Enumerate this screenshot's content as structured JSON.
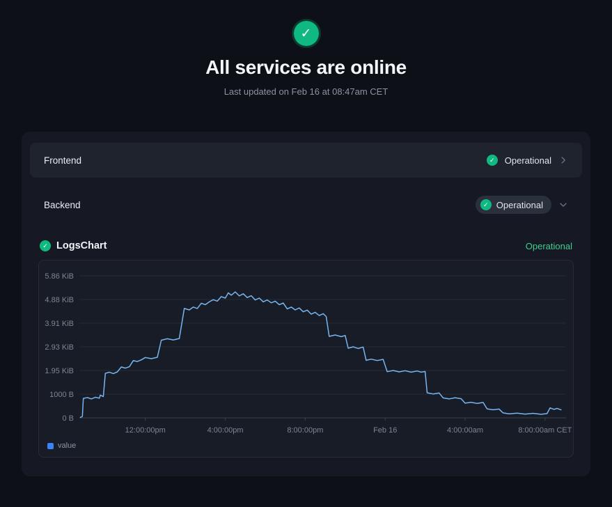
{
  "page": {
    "title": "All services are online",
    "subtitle": "Last updated on Feb 16 at 08:47am CET"
  },
  "services": [
    {
      "name": "Frontend",
      "status": "Operational"
    },
    {
      "name": "Backend",
      "status": "Operational"
    }
  ],
  "monitor": {
    "name": "LogsChart",
    "status": "Operational"
  },
  "legend": {
    "label": "value"
  },
  "colors": {
    "green": "#10b981",
    "green_text": "#3fcf8e",
    "line": "#77b6f2",
    "legend_square": "#3b82f6",
    "grid": "#252b36",
    "axis": "#3a4150",
    "tick_text": "#7d8594"
  },
  "chart_data": {
    "type": "line",
    "title": "LogsChart",
    "unit": "bytes",
    "x_unit": "hours since Feb 15 00:00 (CET)",
    "x_range": [
      8.7,
      33.05
    ],
    "y_range": [
      0,
      6000
    ],
    "grid": true,
    "legend_position": "bottom-left",
    "y_ticks": [
      {
        "value": 0,
        "label": "0 B"
      },
      {
        "value": 1000,
        "label": "1000 B"
      },
      {
        "value": 2000,
        "label": "1.95 KiB"
      },
      {
        "value": 3000,
        "label": "2.93 KiB"
      },
      {
        "value": 4000,
        "label": "3.91 KiB"
      },
      {
        "value": 5000,
        "label": "4.88 KiB"
      },
      {
        "value": 6000,
        "label": "5.86 KiB"
      }
    ],
    "x_ticks": [
      {
        "value": 12,
        "label": "12:00:00pm"
      },
      {
        "value": 16,
        "label": "4:00:00pm"
      },
      {
        "value": 20,
        "label": "8:00:00pm"
      },
      {
        "value": 24,
        "label": "Feb 16"
      },
      {
        "value": 28,
        "label": "4:00:00am"
      },
      {
        "value": 32,
        "label": "8:00:00am CET"
      }
    ],
    "series": [
      {
        "name": "value",
        "points": [
          [
            8.75,
            20
          ],
          [
            8.85,
            60
          ],
          [
            8.9,
            820
          ],
          [
            9.1,
            860
          ],
          [
            9.3,
            800
          ],
          [
            9.5,
            870
          ],
          [
            9.7,
            830
          ],
          [
            9.75,
            960
          ],
          [
            9.9,
            900
          ],
          [
            10.0,
            1880
          ],
          [
            10.2,
            1930
          ],
          [
            10.4,
            1870
          ],
          [
            10.6,
            1940
          ],
          [
            10.8,
            2150
          ],
          [
            11.0,
            2100
          ],
          [
            11.2,
            2160
          ],
          [
            11.4,
            2420
          ],
          [
            11.6,
            2380
          ],
          [
            11.8,
            2450
          ],
          [
            12.0,
            2550
          ],
          [
            12.3,
            2500
          ],
          [
            12.6,
            2560
          ],
          [
            12.8,
            3280
          ],
          [
            13.1,
            3340
          ],
          [
            13.4,
            3290
          ],
          [
            13.7,
            3350
          ],
          [
            13.95,
            4620
          ],
          [
            14.2,
            4560
          ],
          [
            14.4,
            4680
          ],
          [
            14.6,
            4620
          ],
          [
            14.8,
            4840
          ],
          [
            15.0,
            4780
          ],
          [
            15.2,
            4900
          ],
          [
            15.4,
            4990
          ],
          [
            15.6,
            4930
          ],
          [
            15.8,
            5120
          ],
          [
            16.0,
            5060
          ],
          [
            16.15,
            5280
          ],
          [
            16.3,
            5180
          ],
          [
            16.5,
            5320
          ],
          [
            16.7,
            5150
          ],
          [
            16.9,
            5240
          ],
          [
            17.1,
            5080
          ],
          [
            17.3,
            5160
          ],
          [
            17.5,
            4980
          ],
          [
            17.7,
            5060
          ],
          [
            17.9,
            4900
          ],
          [
            18.1,
            4980
          ],
          [
            18.3,
            4860
          ],
          [
            18.5,
            4930
          ],
          [
            18.7,
            4780
          ],
          [
            18.9,
            4850
          ],
          [
            19.1,
            4600
          ],
          [
            19.3,
            4680
          ],
          [
            19.5,
            4560
          ],
          [
            19.7,
            4640
          ],
          [
            19.9,
            4480
          ],
          [
            20.1,
            4550
          ],
          [
            20.3,
            4380
          ],
          [
            20.5,
            4460
          ],
          [
            20.7,
            4320
          ],
          [
            20.9,
            4400
          ],
          [
            21.05,
            4280
          ],
          [
            21.2,
            3440
          ],
          [
            21.5,
            3500
          ],
          [
            21.8,
            3430
          ],
          [
            22.0,
            3480
          ],
          [
            22.15,
            2940
          ],
          [
            22.4,
            3000
          ],
          [
            22.65,
            2930
          ],
          [
            22.9,
            2990
          ],
          [
            23.05,
            2430
          ],
          [
            23.3,
            2480
          ],
          [
            23.6,
            2420
          ],
          [
            23.9,
            2470
          ],
          [
            24.1,
            1950
          ],
          [
            24.4,
            2000
          ],
          [
            24.7,
            1940
          ],
          [
            25.0,
            1990
          ],
          [
            25.3,
            1930
          ],
          [
            25.6,
            1980
          ],
          [
            25.8,
            1930
          ],
          [
            26.0,
            1960
          ],
          [
            26.1,
            1060
          ],
          [
            26.4,
            1010
          ],
          [
            26.7,
            1050
          ],
          [
            26.9,
            840
          ],
          [
            27.2,
            800
          ],
          [
            27.5,
            850
          ],
          [
            27.8,
            810
          ],
          [
            28.0,
            620
          ],
          [
            28.3,
            660
          ],
          [
            28.6,
            610
          ],
          [
            28.9,
            650
          ],
          [
            29.1,
            380
          ],
          [
            29.4,
            340
          ],
          [
            29.7,
            370
          ],
          [
            29.9,
            210
          ],
          [
            30.2,
            170
          ],
          [
            30.6,
            200
          ],
          [
            31.0,
            160
          ],
          [
            31.4,
            190
          ],
          [
            31.8,
            150
          ],
          [
            32.1,
            180
          ],
          [
            32.25,
            420
          ],
          [
            32.45,
            360
          ],
          [
            32.6,
            400
          ],
          [
            32.8,
            340
          ]
        ]
      }
    ]
  }
}
